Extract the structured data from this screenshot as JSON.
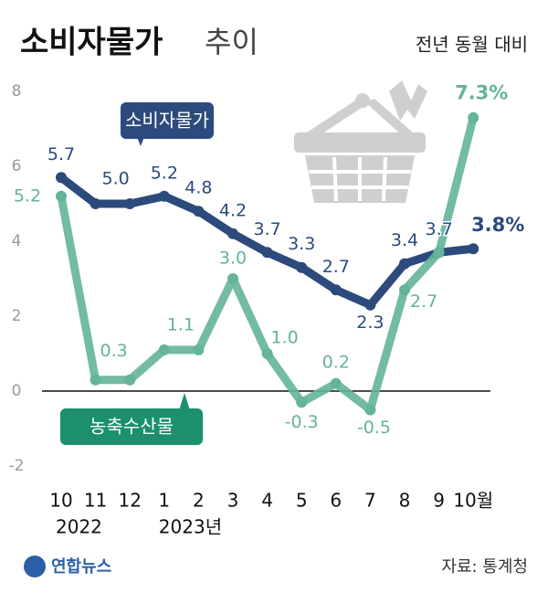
{
  "chart_data": {
    "type": "line",
    "title": "소비자물가",
    "title_suffix": "추이",
    "subtitle": "전년 동월 대비",
    "categories": [
      "10",
      "11",
      "12",
      "1",
      "2",
      "3",
      "4",
      "5",
      "6",
      "7",
      "8",
      "9",
      "10월"
    ],
    "category_sublabels": [
      "2022",
      null,
      null,
      "2023년",
      null,
      null,
      null,
      null,
      null,
      null,
      null,
      null,
      null
    ],
    "series": [
      {
        "name": "소비자물가",
        "color": "#2c4a7c",
        "values": [
          5.7,
          5.0,
          5.0,
          5.2,
          4.8,
          4.2,
          3.7,
          3.3,
          2.7,
          2.3,
          3.4,
          3.7,
          3.8
        ],
        "value_labels": [
          "5.7",
          "5.0",
          null,
          "5.2",
          "4.8",
          "4.2",
          "3.7",
          "3.3",
          "2.7",
          "2.3",
          "3.4",
          "3.7",
          "3.8%"
        ]
      },
      {
        "name": "농축수산물",
        "color": "#64b49a",
        "values": [
          5.2,
          0.3,
          0.3,
          1.1,
          1.1,
          3.0,
          1.0,
          -0.3,
          0.2,
          -0.5,
          2.7,
          3.7,
          7.3
        ],
        "value_labels": [
          "5.2",
          "0.3",
          null,
          "1.1",
          null,
          "3.0",
          "1.0",
          "-0.3",
          "0.2",
          "-0.5",
          "2.7",
          null,
          "7.3%"
        ]
      }
    ],
    "ylim": [
      -2,
      8
    ],
    "yticks": [
      -2,
      0,
      2,
      4,
      6,
      8
    ],
    "source": "자료: 통계청",
    "logo": "연합뉴스"
  }
}
